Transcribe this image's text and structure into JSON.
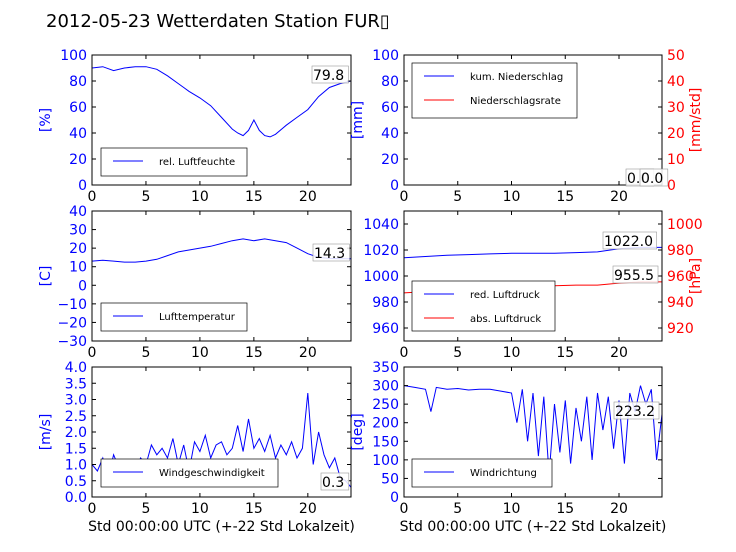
{
  "figure": {
    "title": "2012-05-23 Wetterdaten Station FUR▯"
  },
  "chart_data": [
    {
      "type": "line",
      "xlim": [
        0,
        24
      ],
      "ylim": [
        0,
        100
      ],
      "xticks": [
        "0",
        "5",
        "10",
        "15",
        "20"
      ],
      "yticks": [
        "0",
        "20",
        "40",
        "60",
        "80",
        "100"
      ],
      "ylabel": "[%]",
      "legend_position": "lower-left",
      "series": [
        {
          "name": "rel. Luftfeuchte",
          "color": "#0000ff",
          "x": [
            0,
            1,
            2,
            3,
            4,
            5,
            6,
            7,
            8,
            8.5,
            9,
            10,
            11,
            12,
            13,
            13.5,
            14,
            14.5,
            15,
            15.5,
            16,
            16.5,
            17,
            18,
            19,
            20,
            21,
            22,
            23,
            24
          ],
          "y": [
            90,
            91,
            88,
            90,
            91,
            91,
            89,
            84,
            78,
            75,
            72,
            67,
            61,
            52,
            43,
            40,
            38,
            42,
            50,
            42,
            38,
            37,
            39,
            46,
            52,
            58,
            68,
            75,
            78,
            80
          ]
        }
      ],
      "annotation": "79.8"
    },
    {
      "type": "line",
      "xlim": [
        0,
        24
      ],
      "ylim": [
        0,
        100
      ],
      "xticks": [
        "0",
        "5",
        "10",
        "15",
        "20"
      ],
      "yticks": [
        "0",
        "20",
        "40",
        "60",
        "80",
        "100"
      ],
      "ylabel": "[mm]",
      "y2lim": [
        0,
        50
      ],
      "y2ticks": [
        "0",
        "10",
        "20",
        "30",
        "40",
        "50"
      ],
      "y2label": "[mm/std]",
      "legend_position": "upper-left",
      "series": [
        {
          "name": "kum. Niederschlag",
          "color": "#0000ff",
          "x": [
            0,
            24
          ],
          "y": [
            0,
            0
          ]
        },
        {
          "name": "Niederschlagsrate",
          "color": "#ff0000",
          "x": [
            0,
            24
          ],
          "y": [
            0,
            0
          ]
        }
      ],
      "annotations": [
        "0.0",
        "0.0"
      ]
    },
    {
      "type": "line",
      "xlim": [
        0,
        24
      ],
      "ylim": [
        -30,
        40
      ],
      "xticks": [
        "0",
        "5",
        "10",
        "15",
        "20"
      ],
      "yticks": [
        "−30",
        "−20",
        "−10",
        "0",
        "10",
        "20",
        "30",
        "40"
      ],
      "ylabel": "[C]",
      "legend_position": "lower-left",
      "series": [
        {
          "name": "Lufttemperatur",
          "color": "#0000ff",
          "x": [
            0,
            1,
            2,
            3,
            4,
            5,
            6,
            7,
            8,
            9,
            10,
            11,
            12,
            13,
            14,
            15,
            16,
            17,
            18,
            19,
            20,
            21,
            22,
            23,
            24
          ],
          "y": [
            13,
            13.5,
            13,
            12.5,
            12.5,
            13,
            14,
            16,
            18,
            19,
            20,
            21,
            22.5,
            24,
            25,
            24,
            25,
            24,
            23,
            20,
            17,
            15,
            14.5,
            14.3,
            14.3
          ]
        }
      ],
      "annotation": "14.3"
    },
    {
      "type": "line",
      "xlim": [
        0,
        24
      ],
      "ylim": [
        950,
        1050
      ],
      "xticks": [
        "0",
        "5",
        "10",
        "15",
        "20"
      ],
      "yticks": [
        "960",
        "980",
        "1000",
        "1020",
        "1040"
      ],
      "y2lim": [
        910,
        1010
      ],
      "y2ticks": [
        "920",
        "940",
        "960",
        "980",
        "1000"
      ],
      "y2label": "[hPa]",
      "legend_position": "lower-left",
      "series": [
        {
          "name": "red. Luftdruck",
          "color": "#0000ff",
          "x": [
            0,
            2,
            4,
            6,
            8,
            10,
            12,
            14,
            16,
            18,
            20,
            22,
            24
          ],
          "y": [
            1014,
            1015,
            1016,
            1016.5,
            1017,
            1017.5,
            1017.5,
            1017.5,
            1018,
            1018.5,
            1021,
            1022,
            1022
          ]
        },
        {
          "name": "abs. Luftdruck",
          "color": "#ff0000",
          "axis": "y2",
          "x": [
            0,
            2,
            4,
            6,
            8,
            10,
            12,
            14,
            16,
            18,
            20,
            22,
            24
          ],
          "y": [
            947,
            948,
            949,
            950,
            951,
            952,
            952.5,
            952.5,
            953,
            953,
            954.5,
            955.5,
            955.5
          ]
        }
      ],
      "annotations": [
        "1022.0",
        "955.5"
      ]
    },
    {
      "type": "line",
      "xlim": [
        0,
        24
      ],
      "ylim": [
        0,
        4.0
      ],
      "xticks": [
        "0",
        "5",
        "10",
        "15",
        "20"
      ],
      "yticks": [
        "0.0",
        "0.5",
        "1.0",
        "1.5",
        "2.0",
        "2.5",
        "3.0",
        "3.5",
        "4.0"
      ],
      "ylabel": "[m/s]",
      "xlabel": "Std 00:00:00 UTC (+-22 Std Lokalzeit)",
      "legend_position": "lower-center",
      "series": [
        {
          "name": "Windgeschwindigkeit",
          "color": "#0000ff",
          "x": [
            0,
            0.5,
            1,
            1.5,
            2,
            2.5,
            3,
            3.5,
            4,
            4.5,
            5,
            5.5,
            6,
            6.5,
            7,
            7.5,
            8,
            8.5,
            9,
            9.5,
            10,
            10.5,
            11,
            11.5,
            12,
            12.5,
            13,
            13.5,
            14,
            14.5,
            15,
            15.5,
            16,
            16.5,
            17,
            17.5,
            18,
            18.5,
            19,
            19.5,
            20,
            20.5,
            21,
            21.5,
            22,
            22.5,
            23,
            23.5,
            24
          ],
          "y": [
            1.0,
            0.8,
            1.2,
            0.6,
            1.3,
            0.9,
            0.7,
            1.0,
            0.8,
            1.2,
            1.0,
            1.6,
            1.3,
            1.5,
            1.2,
            1.8,
            1.0,
            1.6,
            0.8,
            1.7,
            1.4,
            1.9,
            1.2,
            1.6,
            1.7,
            1.3,
            1.5,
            2.2,
            1.4,
            2.4,
            1.5,
            1.8,
            1.4,
            1.9,
            1.2,
            1.6,
            1.3,
            1.7,
            1.2,
            1.5,
            3.2,
            1.0,
            2.0,
            1.3,
            0.9,
            1.2,
            0.6,
            0.5,
            0.3
          ]
        }
      ],
      "annotation": "0.3"
    },
    {
      "type": "line",
      "xlim": [
        0,
        24
      ],
      "ylim": [
        0,
        350
      ],
      "xticks": [
        "0",
        "5",
        "10",
        "15",
        "20"
      ],
      "yticks": [
        "0",
        "50",
        "100",
        "150",
        "200",
        "250",
        "300",
        "350"
      ],
      "ylabel": "[deg]",
      "xlabel": "Std 00:00:00 UTC (+-22 Std Lokalzeit)",
      "legend_position": "lower-left",
      "series": [
        {
          "name": "Windrichtung",
          "color": "#0000ff",
          "x": [
            0,
            1,
            2,
            2.5,
            3,
            4,
            5,
            6,
            7,
            8,
            9,
            10,
            10.5,
            11,
            11.5,
            12,
            12.5,
            13,
            13.5,
            14,
            14.5,
            15,
            15.5,
            16,
            16.5,
            17,
            17.5,
            18,
            18.5,
            19,
            19.5,
            20,
            20.5,
            21,
            21.5,
            22,
            22.5,
            23,
            23.5,
            24
          ],
          "y": [
            300,
            295,
            290,
            230,
            295,
            290,
            292,
            288,
            290,
            290,
            285,
            280,
            200,
            290,
            150,
            280,
            110,
            270,
            60,
            250,
            120,
            260,
            90,
            240,
            150,
            270,
            100,
            280,
            180,
            270,
            130,
            260,
            90,
            280,
            230,
            300,
            250,
            290,
            100,
            223
          ]
        }
      ],
      "annotation": "223.2"
    }
  ]
}
